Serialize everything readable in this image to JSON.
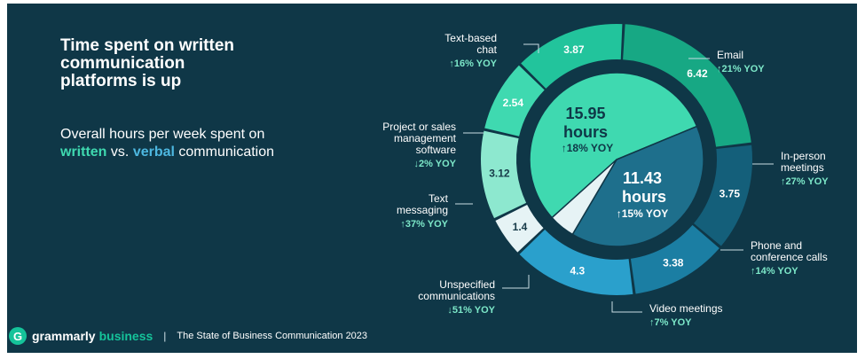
{
  "title_lines": [
    "Time spent on written",
    "communication",
    "platforms is up"
  ],
  "subtitle": {
    "line1": "Overall hours per week spent on",
    "written": "written",
    "vs": "vs.",
    "verbal": "verbal",
    "tail": "communication"
  },
  "footer": {
    "logo_glyph": "G",
    "brand": "grammarly",
    "brand_suffix": "business",
    "separator": "|",
    "report": "The State of Business Communication 2023"
  },
  "colors": {
    "background": "#0f3747",
    "written_light": "#3fd9b0",
    "verbal": "#4db7e0",
    "yoy_text": "#7de8c9"
  },
  "chart_data": {
    "type": "pie",
    "center": [
      {
        "category": "written",
        "value": 15.95,
        "value_label": "15.95",
        "unit": "hours",
        "yoy": "↑18% YOY",
        "color": "#3fd9b0"
      },
      {
        "category": "verbal",
        "value": 11.43,
        "value_label": "11.43",
        "unit": "hours",
        "yoy": "↑15% YOY",
        "color": "#1e6f8c"
      },
      {
        "category": "unspecified",
        "value": 1.4,
        "color": "#e6f3f5"
      }
    ],
    "ring": [
      {
        "id": "email",
        "value": 6.42,
        "label_lines": [
          "Email"
        ],
        "yoy": "↑21% YOY",
        "color": "#17a884"
      },
      {
        "id": "in-person",
        "value": 3.75,
        "label_lines": [
          "In-person",
          "meetings"
        ],
        "yoy": "↑27% YOY",
        "color": "#145f7a"
      },
      {
        "id": "phone",
        "value": 3.38,
        "label_lines": [
          "Phone and",
          "conference calls"
        ],
        "yoy": "↑14% YOY",
        "color": "#1b7ea3"
      },
      {
        "id": "video",
        "value": 4.3,
        "label_lines": [
          "Video meetings"
        ],
        "yoy": "↑7% YOY",
        "color": "#2aa0cc"
      },
      {
        "id": "unspecified",
        "value": 1.4,
        "label_lines": [
          "Unspecified",
          "communications"
        ],
        "yoy": "↓51% YOY",
        "color": "#e6f3f5"
      },
      {
        "id": "text-messaging",
        "value": 3.12,
        "label_lines": [
          "Text",
          "messaging"
        ],
        "yoy": "↑37% YOY",
        "color": "#8de8cf"
      },
      {
        "id": "project-mgmt",
        "value": 2.54,
        "label_lines": [
          "Project or sales",
          "management",
          "software"
        ],
        "yoy": "↓2% YOY",
        "color": "#3fd9b0"
      },
      {
        "id": "text-chat",
        "value": 3.87,
        "label_lines": [
          "Text-based",
          "chat"
        ],
        "yoy": "↑16% YOY",
        "color": "#22c49c"
      }
    ]
  }
}
